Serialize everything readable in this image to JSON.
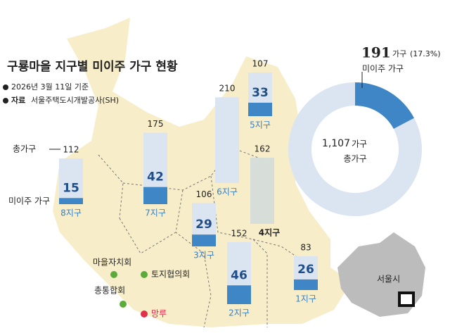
{
  "chart_data": [
    {
      "type": "bar",
      "title": "구룡마을 지구별 미이주 가구 현황",
      "date_note": "2026년 3월 11일 기준",
      "source_title": "자료",
      "source": "서울주택도시개발공사(SH)",
      "categories": [
        "8지구",
        "7지구",
        "6지구",
        "5지구",
        "4지구",
        "3지구",
        "2지구",
        "1지구"
      ],
      "series": [
        {
          "name": "총가구",
          "color": "#dbe5f1",
          "values": [
            112,
            175,
            210,
            107,
            162,
            106,
            152,
            83
          ]
        },
        {
          "name": "미이주 가구",
          "color": "#3f86c6",
          "values": [
            15,
            42,
            0,
            33,
            0,
            29,
            46,
            26
          ]
        }
      ],
      "annotations": [
        "마을자치회",
        "토지협의회",
        "총통합회",
        "망루",
        "서울시"
      ]
    },
    {
      "type": "pie",
      "highlight": {
        "value": 191,
        "name": "미이주 가구",
        "color": "#3f86c6"
      },
      "unit": "가구",
      "percent": {
        "value": 17.3,
        "label": "(17.3%)"
      },
      "total": {
        "value": 1107,
        "label": "1,107",
        "name": "총가구",
        "color": "#dbe5f1"
      }
    }
  ]
}
